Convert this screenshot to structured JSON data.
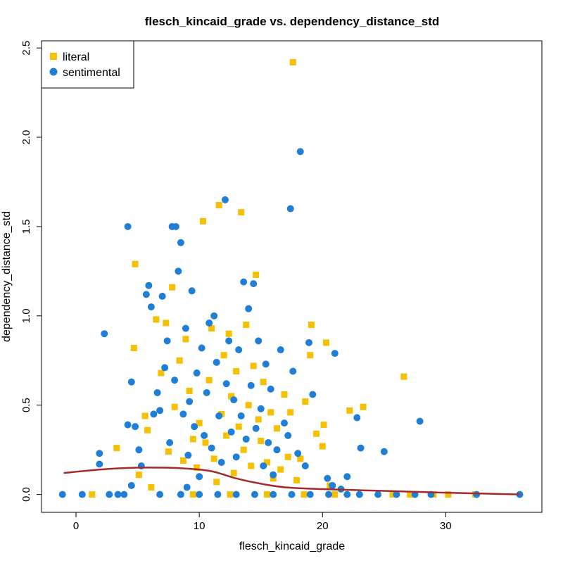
{
  "chart_data": {
    "type": "scatter",
    "title": "flesch_kincaid_grade vs. dependency_distance_std",
    "xlabel": "flesch_kincaid_grade",
    "ylabel": "dependency_distance_std",
    "xlim": [
      -2.8,
      37.8
    ],
    "ylim": [
      -0.1,
      2.54
    ],
    "x_ticks": [
      0,
      10,
      20,
      30
    ],
    "y_ticks": [
      0.0,
      0.5,
      1.0,
      1.5,
      2.0,
      2.5
    ],
    "x_tick_labels": [
      "0",
      "10",
      "20",
      "30"
    ],
    "y_tick_labels": [
      "0.0",
      "0.5",
      "1.0",
      "1.5",
      "2.0",
      "2.5"
    ],
    "legend": {
      "position": "top-left",
      "entries": [
        {
          "name": "literal",
          "marker": "square",
          "color": "#f5c000"
        },
        {
          "name": "sentimental",
          "marker": "circle",
          "color": "#1f7fd6"
        }
      ]
    },
    "grid": false,
    "series": [
      {
        "name": "literal",
        "marker": "square",
        "color": "#f5c000",
        "points": [
          [
            1.3,
            0.0
          ],
          [
            3.3,
            0.26
          ],
          [
            4.7,
            0.82
          ],
          [
            4.8,
            1.29
          ],
          [
            5.1,
            0.11
          ],
          [
            5.6,
            0.44
          ],
          [
            5.8,
            0.36
          ],
          [
            6.1,
            0.04
          ],
          [
            6.5,
            0.98
          ],
          [
            6.9,
            0.68
          ],
          [
            7.3,
            0.96
          ],
          [
            7.5,
            0.24
          ],
          [
            7.8,
            1.16
          ],
          [
            8.0,
            0.49
          ],
          [
            8.4,
            0.75
          ],
          [
            8.7,
            0.19
          ],
          [
            8.9,
            0.87
          ],
          [
            9.2,
            0.58
          ],
          [
            9.5,
            0.31
          ],
          [
            9.8,
            0.15
          ],
          [
            10.0,
            0.4
          ],
          [
            10.3,
            1.53
          ],
          [
            10.5,
            0.29
          ],
          [
            10.8,
            0.64
          ],
          [
            11.0,
            0.93
          ],
          [
            11.2,
            0.2
          ],
          [
            11.4,
            0.07
          ],
          [
            11.6,
            1.62
          ],
          [
            11.8,
            0.45
          ],
          [
            12.0,
            0.78
          ],
          [
            12.2,
            0.33
          ],
          [
            12.4,
            0.9
          ],
          [
            12.6,
            0.55
          ],
          [
            12.8,
            0.12
          ],
          [
            13.0,
            0.69
          ],
          [
            13.2,
            0.38
          ],
          [
            13.4,
            1.58
          ],
          [
            13.6,
            0.25
          ],
          [
            13.8,
            0.95
          ],
          [
            14.0,
            0.5
          ],
          [
            14.2,
            0.16
          ],
          [
            14.4,
            0.72
          ],
          [
            14.6,
            1.23
          ],
          [
            14.8,
            0.42
          ],
          [
            15.0,
            0.3
          ],
          [
            15.2,
            0.63
          ],
          [
            15.5,
            0.18
          ],
          [
            15.8,
            0.46
          ],
          [
            16.0,
            0.09
          ],
          [
            16.3,
            0.37
          ],
          [
            16.6,
            0.14
          ],
          [
            16.9,
            0.56
          ],
          [
            17.2,
            0.21
          ],
          [
            17.4,
            0.46
          ],
          [
            17.6,
            2.42
          ],
          [
            17.9,
            0.08
          ],
          [
            18.2,
            0.2
          ],
          [
            18.6,
            0.52
          ],
          [
            19.0,
            0.78
          ],
          [
            19.1,
            0.95
          ],
          [
            19.5,
            0.34
          ],
          [
            20.0,
            0.27
          ],
          [
            20.1,
            0.39
          ],
          [
            20.3,
            0.85
          ],
          [
            20.6,
            0.05
          ],
          [
            21.0,
            0.0
          ],
          [
            22.2,
            0.47
          ],
          [
            23.3,
            0.49
          ],
          [
            25.7,
            0.0
          ],
          [
            26.6,
            0.66
          ],
          [
            27.1,
            0.0
          ],
          [
            29.0,
            0.0
          ],
          [
            30.2,
            0.0
          ],
          [
            32.4,
            0.0
          ],
          [
            9.5,
            0.0
          ],
          [
            12.5,
            0.0
          ],
          [
            15.5,
            0.0
          ],
          [
            18.5,
            0.0
          ]
        ]
      },
      {
        "name": "sentimental",
        "marker": "circle",
        "color": "#1f7fd6",
        "points": [
          [
            -1.1,
            0.0
          ],
          [
            0.5,
            0.0
          ],
          [
            1.9,
            0.23
          ],
          [
            1.9,
            0.17
          ],
          [
            2.3,
            0.9
          ],
          [
            2.7,
            0.0
          ],
          [
            3.4,
            0.0
          ],
          [
            3.9,
            0.0
          ],
          [
            4.2,
            1.5
          ],
          [
            4.2,
            0.39
          ],
          [
            4.5,
            0.63
          ],
          [
            4.5,
            0.05
          ],
          [
            4.8,
            0.38
          ],
          [
            5.1,
            0.25
          ],
          [
            5.3,
            0.16
          ],
          [
            5.7,
            1.12
          ],
          [
            5.9,
            1.17
          ],
          [
            6.1,
            1.05
          ],
          [
            6.3,
            0.45
          ],
          [
            6.6,
            0.57
          ],
          [
            6.8,
            0.47
          ],
          [
            7.0,
            1.11
          ],
          [
            7.2,
            0.71
          ],
          [
            7.4,
            0.86
          ],
          [
            7.6,
            0.29
          ],
          [
            7.8,
            1.5
          ],
          [
            8.0,
            0.64
          ],
          [
            8.1,
            1.5
          ],
          [
            8.3,
            1.25
          ],
          [
            8.5,
            1.41
          ],
          [
            8.7,
            0.45
          ],
          [
            8.9,
            0.93
          ],
          [
            9.1,
            0.22
          ],
          [
            9.2,
            0.52
          ],
          [
            9.4,
            1.14
          ],
          [
            9.6,
            0.38
          ],
          [
            9.8,
            0.68
          ],
          [
            10.0,
            0.1
          ],
          [
            10.2,
            0.82
          ],
          [
            10.4,
            0.33
          ],
          [
            10.6,
            0.57
          ],
          [
            10.8,
            0.96
          ],
          [
            11.0,
            0.26
          ],
          [
            11.2,
            1.0
          ],
          [
            11.4,
            0.74
          ],
          [
            11.6,
            0.44
          ],
          [
            11.8,
            0.18
          ],
          [
            12.1,
            1.65
          ],
          [
            12.2,
            0.62
          ],
          [
            12.4,
            0.86
          ],
          [
            12.6,
            0.35
          ],
          [
            12.8,
            0.53
          ],
          [
            13.0,
            0.21
          ],
          [
            13.2,
            0.81
          ],
          [
            13.4,
            0.44
          ],
          [
            13.6,
            1.19
          ],
          [
            13.8,
            0.31
          ],
          [
            14.0,
            1.04
          ],
          [
            14.2,
            0.61
          ],
          [
            14.4,
            1.18
          ],
          [
            14.6,
            0.37
          ],
          [
            14.8,
            0.86
          ],
          [
            15.0,
            0.48
          ],
          [
            15.2,
            0.16
          ],
          [
            15.4,
            0.73
          ],
          [
            15.6,
            0.29
          ],
          [
            15.8,
            0.59
          ],
          [
            16.0,
            0.11
          ],
          [
            16.3,
            0.25
          ],
          [
            16.6,
            0.81
          ],
          [
            16.9,
            0.4
          ],
          [
            17.2,
            0.33
          ],
          [
            17.4,
            1.6
          ],
          [
            17.6,
            0.69
          ],
          [
            18.0,
            0.23
          ],
          [
            18.2,
            1.92
          ],
          [
            18.6,
            0.16
          ],
          [
            18.9,
            0.85
          ],
          [
            19.2,
            0.56
          ],
          [
            20.4,
            0.09
          ],
          [
            20.8,
            0.05
          ],
          [
            21.0,
            0.79
          ],
          [
            21.5,
            0.03
          ],
          [
            22.0,
            0.1
          ],
          [
            22.8,
            0.43
          ],
          [
            23.1,
            0.26
          ],
          [
            25.0,
            0.24
          ],
          [
            27.9,
            0.41
          ],
          [
            8.5,
            0.0
          ],
          [
            10.0,
            0.0
          ],
          [
            11.5,
            0.0
          ],
          [
            13.0,
            0.0
          ],
          [
            14.5,
            0.0
          ],
          [
            16.0,
            0.0
          ],
          [
            17.5,
            0.0
          ],
          [
            19.0,
            0.0
          ],
          [
            20.5,
            0.0
          ],
          [
            22.0,
            0.0
          ],
          [
            23.0,
            0.0
          ],
          [
            24.5,
            0.0
          ],
          [
            26.0,
            0.0
          ],
          [
            27.5,
            0.0
          ],
          [
            28.8,
            0.0
          ],
          [
            32.5,
            0.0
          ],
          [
            36.0,
            0.0
          ],
          [
            6.8,
            0.0
          ],
          [
            9.0,
            0.04
          ]
        ]
      }
    ],
    "trend_line": {
      "color": "#a52a2a",
      "points": [
        [
          -1.0,
          0.12
        ],
        [
          2,
          0.14
        ],
        [
          5,
          0.15
        ],
        [
          7,
          0.15
        ],
        [
          9,
          0.145
        ],
        [
          11,
          0.13
        ],
        [
          13,
          0.09
        ],
        [
          15,
          0.06
        ],
        [
          17,
          0.04
        ],
        [
          20,
          0.03
        ],
        [
          25,
          0.02
        ],
        [
          30,
          0.01
        ],
        [
          36,
          0.0
        ]
      ]
    }
  }
}
